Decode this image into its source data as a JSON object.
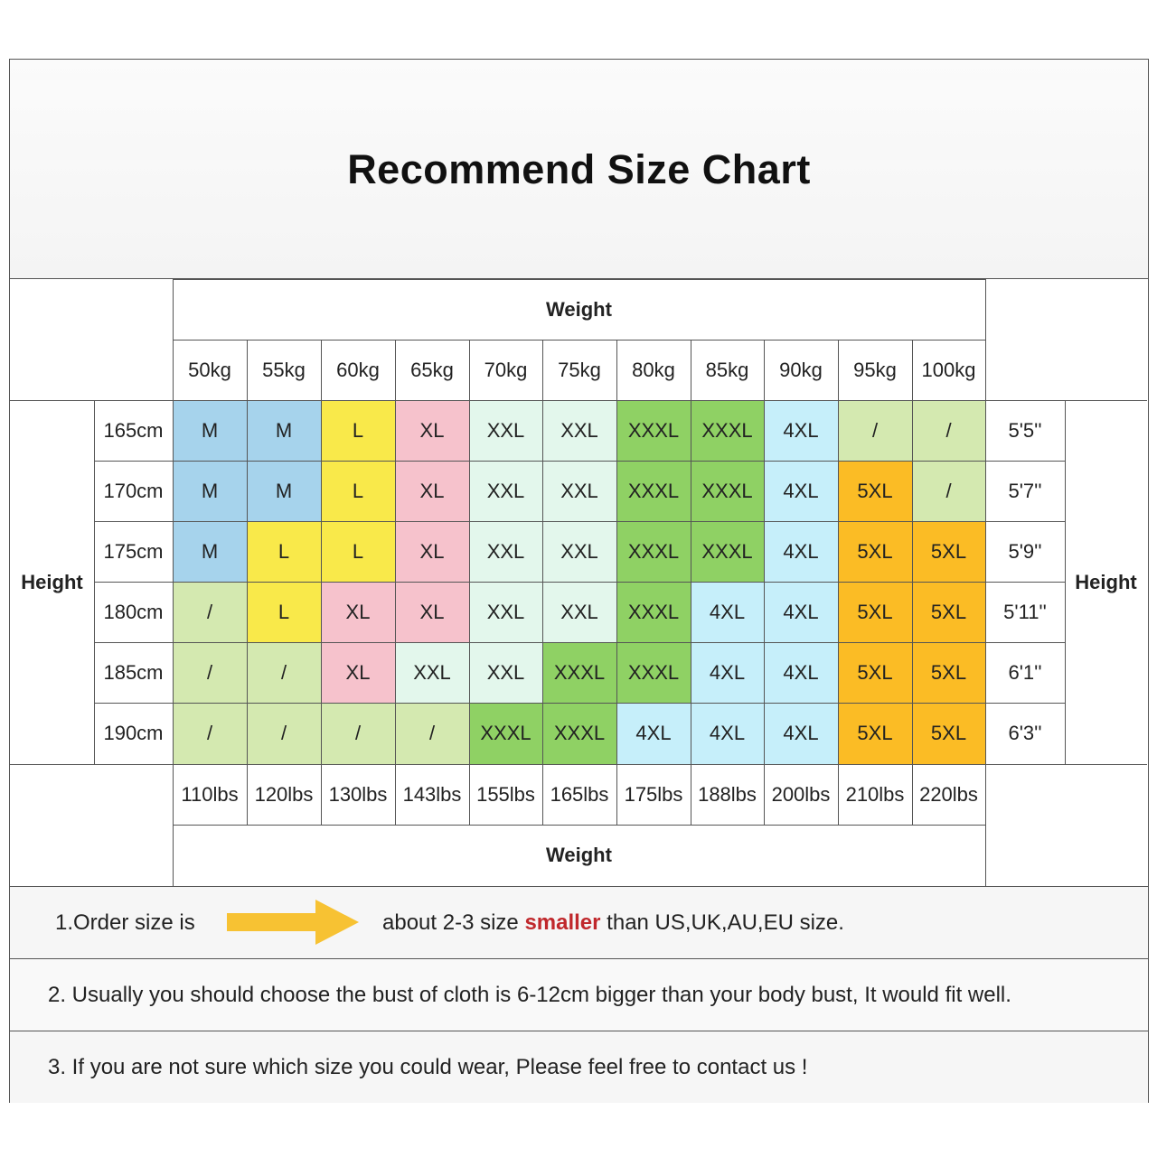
{
  "title": "Recommend Size Chart",
  "weight_header_top": "Weight",
  "weight_header_bottom": "Weight",
  "height_label_left": "Height",
  "height_label_right": "Height",
  "weights_kg": [
    "50kg",
    "55kg",
    "60kg",
    "65kg",
    "70kg",
    "75kg",
    "80kg",
    "85kg",
    "90kg",
    "95kg",
    "100kg"
  ],
  "weights_lbs": [
    "110lbs",
    "120lbs",
    "130lbs",
    "143lbs",
    "155lbs",
    "165lbs",
    "175lbs",
    "188lbs",
    "200lbs",
    "210lbs",
    "220lbs"
  ],
  "heights_cm": [
    "165cm",
    "170cm",
    "175cm",
    "180cm",
    "185cm",
    "190cm"
  ],
  "heights_ft": [
    "5'5''",
    "5'7''",
    "5'9''",
    "5'11''",
    "6'1''",
    "6'3''"
  ],
  "sizes": [
    [
      "M",
      "M",
      "L",
      "XL",
      "XXL",
      "XXL",
      "XXXL",
      "XXXL",
      "4XL",
      "/",
      "/"
    ],
    [
      "M",
      "M",
      "L",
      "XL",
      "XXL",
      "XXL",
      "XXXL",
      "XXXL",
      "4XL",
      "5XL",
      "/"
    ],
    [
      "M",
      "L",
      "L",
      "XL",
      "XXL",
      "XXL",
      "XXXL",
      "XXXL",
      "4XL",
      "5XL",
      "5XL"
    ],
    [
      "/",
      "L",
      "XL",
      "XL",
      "XXL",
      "XXL",
      "XXXL",
      "4XL",
      "4XL",
      "5XL",
      "5XL"
    ],
    [
      "/",
      "/",
      "XL",
      "XXL",
      "XXL",
      "XXXL",
      "XXXL",
      "4XL",
      "4XL",
      "5XL",
      "5XL"
    ],
    [
      "/",
      "/",
      "/",
      "/",
      "XXXL",
      "XXXL",
      "4XL",
      "4XL",
      "4XL",
      "5XL",
      "5XL"
    ]
  ],
  "size_colors": {
    "M": "#a6d3ec",
    "L": "#f9e94a",
    "XL": "#f6c2cc",
    "XXL": "#e3f7ec",
    "XXXL": "#8fd164",
    "4XL": "#c6effa",
    "5XL": "#fbbc25",
    "/": "#d4e9b0"
  },
  "notes": {
    "note1_prefix": "1.Order size is",
    "note1_middle": "about 2-3 size",
    "note1_red": "smaller",
    "note1_suffix": "than US,UK,AU,EU size.",
    "note2": "2. Usually you should choose the bust of cloth is 6-12cm bigger than your body bust, It would fit well.",
    "note3": "3. If you are not sure which size you could wear, Please feel free to contact us !"
  },
  "arrow_color": "#f7c233"
}
